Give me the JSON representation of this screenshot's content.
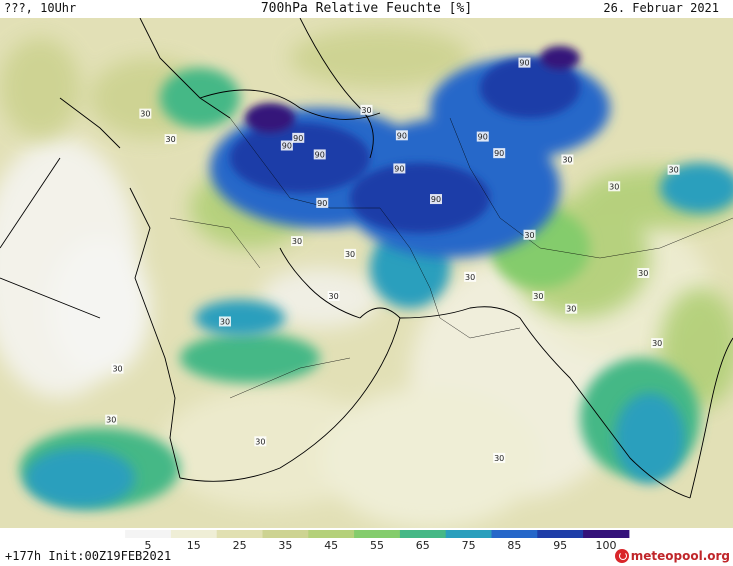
{
  "header": {
    "left_text": "???, 10Uhr",
    "title": "700hPa Relative Feuchte [%]",
    "date": "26. Februar 2021"
  },
  "footer": {
    "run_info": "+177h Init:00Z19FEB2021",
    "brand": "meteopool.org"
  },
  "colorbar": {
    "ticks": [
      "5",
      "15",
      "25",
      "35",
      "45",
      "55",
      "65",
      "75",
      "85",
      "95",
      "100"
    ],
    "colors": [
      "#f4f4f4",
      "#efeed6",
      "#e1e0b2",
      "#cdd392",
      "#b4d07a",
      "#84cc6c",
      "#45b886",
      "#2a9fbd",
      "#2667c9",
      "#1f3ea8",
      "#34127a"
    ]
  },
  "map": {
    "contour_labels": [
      {
        "text": "90",
        "lon": 51.6,
        "lat": 40.6
      },
      {
        "text": "90",
        "lon": 50.7,
        "lat": 40.0
      },
      {
        "text": "90",
        "lon": 53.3,
        "lat": 39.3
      },
      {
        "text": "90",
        "lon": 59.8,
        "lat": 40.8
      },
      {
        "text": "90",
        "lon": 59.6,
        "lat": 38.2
      },
      {
        "text": "90",
        "lon": 53.5,
        "lat": 35.5
      },
      {
        "text": "90",
        "lon": 62.5,
        "lat": 35.8
      },
      {
        "text": "90",
        "lon": 66.2,
        "lat": 40.7
      },
      {
        "text": "90",
        "lon": 67.5,
        "lat": 39.4
      },
      {
        "text": "90",
        "lon": 69.5,
        "lat": 46.5
      },
      {
        "text": "30",
        "lon": 39.5,
        "lat": 42.5
      },
      {
        "text": "30",
        "lon": 41.5,
        "lat": 40.5
      },
      {
        "text": "30",
        "lon": 57.0,
        "lat": 42.8
      },
      {
        "text": "30",
        "lon": 51.5,
        "lat": 32.5
      },
      {
        "text": "30",
        "lon": 55.7,
        "lat": 31.5
      },
      {
        "text": "30",
        "lon": 45.8,
        "lat": 26.2
      },
      {
        "text": "30",
        "lon": 54.4,
        "lat": 28.2
      },
      {
        "text": "30",
        "lon": 37.3,
        "lat": 22.5
      },
      {
        "text": "30",
        "lon": 48.6,
        "lat": 16.8
      },
      {
        "text": "30",
        "lon": 65.2,
        "lat": 29.7
      },
      {
        "text": "30",
        "lon": 69.9,
        "lat": 33.0
      },
      {
        "text": "30",
        "lon": 72.9,
        "lat": 38.9
      },
      {
        "text": "30",
        "lon": 76.6,
        "lat": 36.8
      },
      {
        "text": "30",
        "lon": 70.6,
        "lat": 28.2
      },
      {
        "text": "30",
        "lon": 73.2,
        "lat": 27.2
      },
      {
        "text": "30",
        "lon": 78.9,
        "lat": 30.0
      },
      {
        "text": "30",
        "lon": 80.0,
        "lat": 24.5
      },
      {
        "text": "30",
        "lon": 81.3,
        "lat": 38.1
      },
      {
        "text": "30",
        "lon": 36.8,
        "lat": 18.5
      },
      {
        "text": "30",
        "lon": 67.5,
        "lat": 15.5
      }
    ]
  }
}
